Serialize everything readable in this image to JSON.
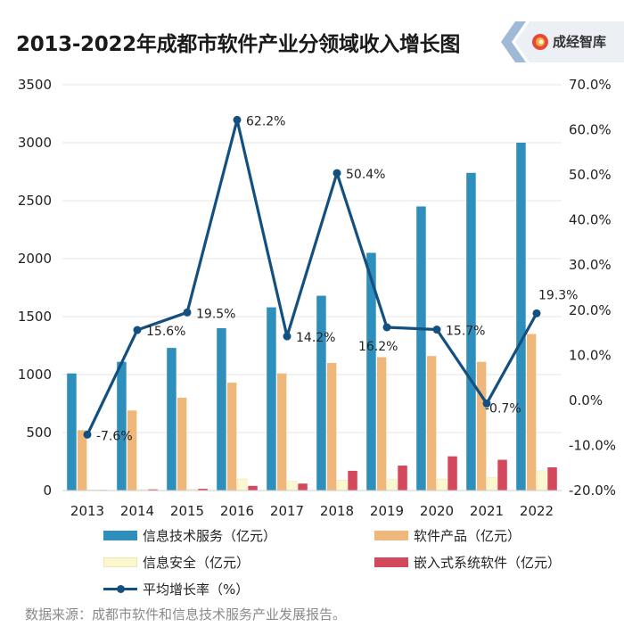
{
  "header": {
    "title": "2013-2022年成都市软件产业分领域收入增长图",
    "logo_text": "成经智库"
  },
  "source": "数据来源：成都市软件和信息技术服务产业发展报告。",
  "colors": {
    "it_services": "#2e8fbd",
    "software_products": "#f0b77b",
    "info_security": "#fbf7cf",
    "embedded": "#d2495d",
    "growth_line": "#14507f",
    "grid": "#e6e6e6"
  },
  "chart_data": {
    "type": "bar",
    "categories": [
      "2013",
      "2014",
      "2015",
      "2016",
      "2017",
      "2018",
      "2019",
      "2020",
      "2021",
      "2022"
    ],
    "series": [
      {
        "name": "信息技术服务（亿元）",
        "axis": "left",
        "values": [
          1010,
          1110,
          1230,
          1400,
          1580,
          1680,
          2050,
          2450,
          2740,
          3000
        ]
      },
      {
        "name": "软件产品（亿元）",
        "axis": "left",
        "values": [
          520,
          690,
          800,
          930,
          1010,
          1100,
          1150,
          1160,
          1110,
          1350
        ]
      },
      {
        "name": "信息安全（亿元）",
        "axis": "left",
        "values": [
          5,
          8,
          12,
          100,
          80,
          90,
          95,
          100,
          110,
          170
        ]
      },
      {
        "name": "嵌入式系统软件（亿元）",
        "axis": "left",
        "values": [
          5,
          10,
          15,
          40,
          60,
          170,
          215,
          295,
          265,
          200
        ]
      }
    ],
    "line_series": {
      "name": "平均增长率（%）",
      "axis": "right",
      "values": [
        -7.6,
        15.6,
        19.5,
        62.2,
        14.2,
        50.4,
        16.2,
        15.7,
        -0.7,
        19.3
      ],
      "labels": [
        "-7.6%",
        "15.6%",
        "19.5%",
        "62.2%",
        "14.2%",
        "50.4%",
        "16.2%",
        "15.7%",
        "-0.7%",
        "19.3%"
      ]
    },
    "left_axis": {
      "ylim": [
        0,
        3500
      ],
      "ticks": [
        "0",
        "500",
        "1000",
        "1500",
        "2000",
        "2500",
        "3000",
        "3500"
      ]
    },
    "right_axis": {
      "ylim": [
        -20,
        70
      ],
      "ticks": [
        "-20.0%",
        "-10.0%",
        "0.0%",
        "10.0%",
        "20.0%",
        "30.0%",
        "40.0%",
        "50.0%",
        "60.0%",
        "70.0%"
      ]
    },
    "grid": true,
    "legend_position": "bottom"
  }
}
